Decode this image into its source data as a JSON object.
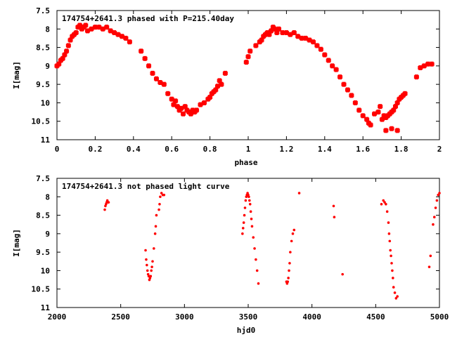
{
  "colors": {
    "points": "#ff0000",
    "frame": "#000000",
    "background": "#ffffff"
  },
  "chart_data": [
    {
      "type": "scatter",
      "title": "174754+2641.3 phased with P=215.40day",
      "xlabel": "phase",
      "ylabel": "I[mag]",
      "xlim": [
        0,
        2
      ],
      "ylim": [
        7.5,
        11
      ],
      "y_inverted": true,
      "grid": false,
      "x_ticks": [
        "0",
        "0.2",
        "0.4",
        "0.6",
        "0.8",
        "1",
        "1.2",
        "1.4",
        "1.6",
        "1.8",
        "2"
      ],
      "x_tick_values": [
        0,
        0.2,
        0.4,
        0.6,
        0.8,
        1,
        1.2,
        1.4,
        1.6,
        1.8,
        2
      ],
      "y_ticks": [
        "7.5",
        "8",
        "8.5",
        "9",
        "9.5",
        "10",
        "10.5",
        "11"
      ],
      "y_tick_values": [
        7.5,
        8,
        8.5,
        9,
        9.5,
        10,
        10.5,
        11
      ],
      "marker": "plus",
      "x": [
        0.0,
        0.01,
        0.02,
        0.03,
        0.04,
        0.05,
        0.06,
        0.07,
        0.08,
        0.09,
        0.1,
        0.11,
        0.12,
        0.13,
        0.14,
        0.15,
        0.16,
        0.18,
        0.2,
        0.22,
        0.24,
        0.26,
        0.28,
        0.3,
        0.32,
        0.34,
        0.36,
        0.38,
        0.44,
        0.46,
        0.48,
        0.5,
        0.52,
        0.54,
        0.56,
        0.58,
        0.6,
        0.61,
        0.62,
        0.63,
        0.64,
        0.65,
        0.66,
        0.67,
        0.68,
        0.69,
        0.7,
        0.71,
        0.72,
        0.73,
        0.75,
        0.77,
        0.79,
        0.8,
        0.81,
        0.82,
        0.83,
        0.84,
        0.85,
        0.86,
        0.88,
        0.99,
        1.0,
        1.01,
        1.04,
        1.06,
        1.07,
        1.08,
        1.09,
        1.1,
        1.11,
        1.12,
        1.13,
        1.14,
        1.15,
        1.16,
        1.18,
        1.2,
        1.22,
        1.24,
        1.26,
        1.28,
        1.3,
        1.32,
        1.34,
        1.36,
        1.38,
        1.4,
        1.42,
        1.44,
        1.46,
        1.48,
        1.5,
        1.52,
        1.54,
        1.56,
        1.58,
        1.6,
        1.62,
        1.63,
        1.64,
        1.66,
        1.68,
        1.69,
        1.7,
        1.71,
        1.72,
        1.73,
        1.74,
        1.75,
        1.76,
        1.77,
        1.78,
        1.79,
        1.8,
        1.81,
        1.82,
        1.72,
        1.75,
        1.78,
        1.88,
        1.9,
        1.92,
        1.94,
        1.96
      ],
      "y": [
        9.0,
        8.95,
        8.85,
        8.8,
        8.7,
        8.6,
        8.45,
        8.3,
        8.2,
        8.15,
        8.1,
        7.95,
        7.9,
        8.0,
        7.95,
        7.9,
        8.05,
        8.0,
        7.95,
        7.95,
        8.0,
        7.95,
        8.05,
        8.1,
        8.15,
        8.2,
        8.25,
        8.35,
        8.6,
        8.8,
        9.0,
        9.2,
        9.35,
        9.45,
        9.5,
        9.75,
        9.9,
        10.05,
        9.95,
        10.1,
        10.2,
        10.15,
        10.3,
        10.1,
        10.2,
        10.25,
        10.3,
        10.2,
        10.25,
        10.2,
        10.05,
        10.0,
        9.9,
        9.85,
        9.75,
        9.7,
        9.65,
        9.55,
        9.4,
        9.5,
        9.2,
        8.9,
        8.75,
        8.6,
        8.45,
        8.35,
        8.3,
        8.2,
        8.15,
        8.1,
        8.15,
        8.05,
        7.95,
        8.0,
        8.1,
        8.0,
        8.1,
        8.1,
        8.15,
        8.1,
        8.2,
        8.25,
        8.25,
        8.3,
        8.35,
        8.45,
        8.55,
        8.7,
        8.85,
        9.0,
        9.1,
        9.3,
        9.5,
        9.65,
        9.8,
        10.0,
        10.2,
        10.35,
        10.45,
        10.55,
        10.6,
        10.3,
        10.25,
        10.1,
        10.45,
        10.35,
        10.4,
        10.35,
        10.3,
        10.25,
        10.2,
        10.1,
        10.0,
        9.9,
        9.85,
        9.8,
        9.75,
        10.75,
        10.7,
        10.75,
        9.3,
        9.05,
        9.0,
        8.95,
        8.95
      ]
    },
    {
      "type": "scatter",
      "title": "174754+2641.3 not phased light curve",
      "xlabel": "hjd0",
      "ylabel": "I[mag]",
      "xlim": [
        2000,
        5000
      ],
      "ylim": [
        7.5,
        11
      ],
      "y_inverted": true,
      "grid": false,
      "x_ticks": [
        "2000",
        "2500",
        "3000",
        "3500",
        "4000",
        "4500",
        "5000"
      ],
      "x_tick_values": [
        2000,
        2500,
        3000,
        3500,
        4000,
        4500,
        5000
      ],
      "y_ticks": [
        "7.5",
        "8",
        "8.5",
        "9",
        "9.5",
        "10",
        "10.5",
        "11"
      ],
      "y_tick_values": [
        7.5,
        8,
        8.5,
        9,
        9.5,
        10,
        10.5,
        11
      ],
      "marker": "dot",
      "x": [
        2375,
        2380,
        2385,
        2390,
        2395,
        2400,
        2405,
        2695,
        2700,
        2705,
        2710,
        2715,
        2720,
        2725,
        2730,
        2735,
        2740,
        2745,
        2750,
        2760,
        2770,
        2775,
        2780,
        2800,
        2805,
        2810,
        2820,
        2830,
        2840,
        3455,
        3460,
        3465,
        3470,
        3475,
        3480,
        3485,
        3490,
        3495,
        3500,
        3505,
        3510,
        3515,
        3520,
        3525,
        3530,
        3540,
        3550,
        3560,
        3570,
        3580,
        3800,
        3805,
        3810,
        3815,
        3820,
        3825,
        3830,
        3840,
        3850,
        3860,
        3900,
        4170,
        4175,
        4240,
        4545,
        4560,
        4570,
        4580,
        4590,
        4600,
        4605,
        4610,
        4615,
        4620,
        4625,
        4630,
        4635,
        4640,
        4650,
        4660,
        4670,
        4920,
        4930,
        4950,
        4960,
        4970,
        4980,
        4990,
        5000
      ],
      "y": [
        8.35,
        8.25,
        8.2,
        8.15,
        8.1,
        8.15,
        8.15,
        9.45,
        9.7,
        9.85,
        10.0,
        10.1,
        10.15,
        10.25,
        10.2,
        10.15,
        10.0,
        9.9,
        9.75,
        9.4,
        9.0,
        8.8,
        8.5,
        8.35,
        8.2,
        8.0,
        7.9,
        7.95,
        7.95,
        9.0,
        8.85,
        8.7,
        8.5,
        8.3,
        8.1,
        8.0,
        7.95,
        7.9,
        7.95,
        8.0,
        8.1,
        8.2,
        8.4,
        8.6,
        8.8,
        9.1,
        9.4,
        9.7,
        10.0,
        10.35,
        10.3,
        10.35,
        10.3,
        10.2,
        10.0,
        9.8,
        9.5,
        9.2,
        9.0,
        8.9,
        7.9,
        8.25,
        8.55,
        10.1,
        8.2,
        8.1,
        8.15,
        8.2,
        8.4,
        8.7,
        9.0,
        9.2,
        9.45,
        9.6,
        9.8,
        10.0,
        10.2,
        10.45,
        10.6,
        10.75,
        10.7,
        9.9,
        9.6,
        8.75,
        8.55,
        8.3,
        8.1,
        7.95,
        7.9
      ]
    }
  ]
}
